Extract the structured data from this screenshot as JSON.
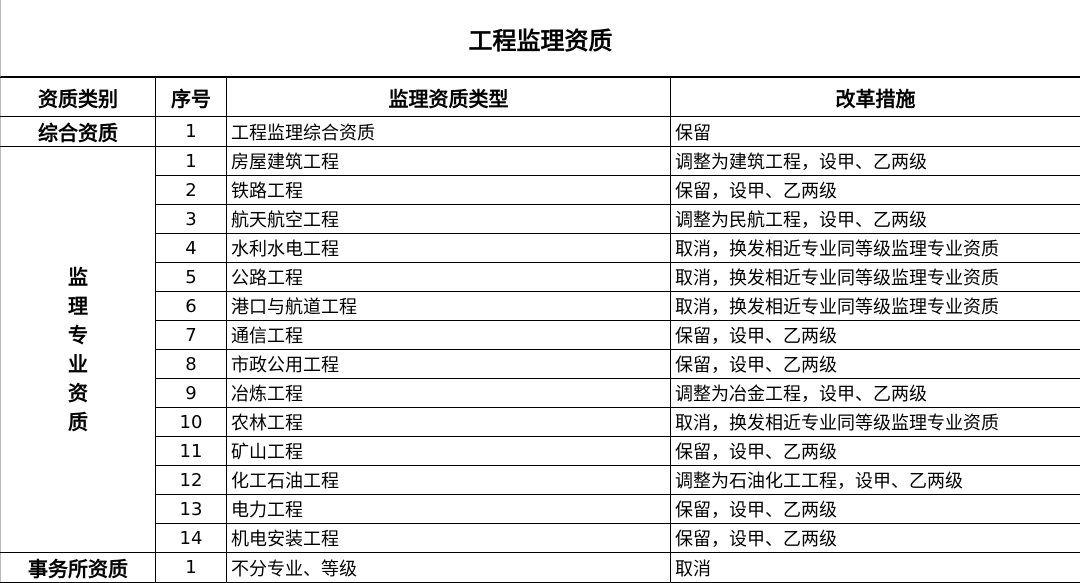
{
  "title": "工程监理资质",
  "headers": [
    "资质类别",
    "序号",
    "监理资质类型",
    "改革措施"
  ],
  "groups": [
    {
      "category": "综合资质",
      "rows": [
        {
          "no": "1",
          "type": "工程监理综合资质",
          "measure": "保留"
        }
      ]
    },
    {
      "category": "监理专业资质",
      "category_chars": [
        "监",
        "理",
        "专",
        "业",
        "资",
        "质"
      ],
      "rows": [
        {
          "no": "1",
          "type": "房屋建筑工程",
          "measure": "调整为建筑工程，设甲、乙两级"
        },
        {
          "no": "2",
          "type": "铁路工程",
          "measure": "保留，设甲、乙两级"
        },
        {
          "no": "3",
          "type": "航天航空工程",
          "measure": "调整为民航工程，设甲、乙两级"
        },
        {
          "no": "4",
          "type": "水利水电工程",
          "measure": "取消，换发相近专业同等级监理专业资质"
        },
        {
          "no": "5",
          "type": "公路工程",
          "measure": "取消，换发相近专业同等级监理专业资质"
        },
        {
          "no": "6",
          "type": "港口与航道工程",
          "measure": "取消，换发相近专业同等级监理专业资质"
        },
        {
          "no": "7",
          "type": "通信工程",
          "measure": "保留，设甲、乙两级"
        },
        {
          "no": "8",
          "type": "市政公用工程",
          "measure": "保留，设甲、乙两级"
        },
        {
          "no": "9",
          "type": "冶炼工程",
          "measure": "调整为冶金工程，设甲、乙两级"
        },
        {
          "no": "10",
          "type": "农林工程",
          "measure": "取消，换发相近专业同等级监理专业资质"
        },
        {
          "no": "11",
          "type": "矿山工程",
          "measure": "保留，设甲、乙两级"
        },
        {
          "no": "12",
          "type": "化工石油工程",
          "measure": "调整为石油化工工程，设甲、乙两级"
        },
        {
          "no": "13",
          "type": "电力工程",
          "measure": "保留，设甲、乙两级"
        },
        {
          "no": "14",
          "type": "机电安装工程",
          "measure": "保留，设甲、乙两级"
        }
      ]
    },
    {
      "category": "事务所资质",
      "rows": [
        {
          "no": "1",
          "type": "不分专业、等级",
          "measure": "取消"
        }
      ]
    }
  ]
}
